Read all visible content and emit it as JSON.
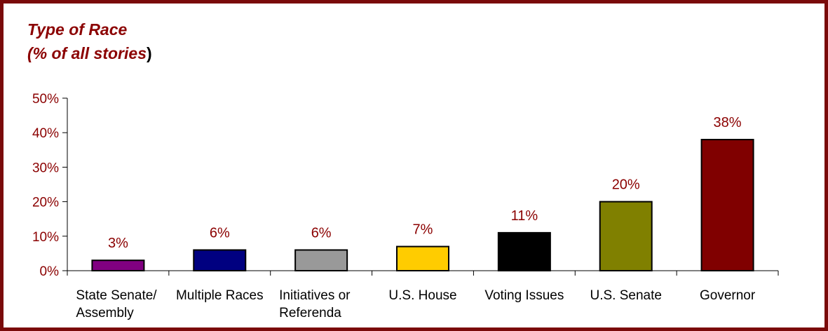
{
  "chart_data": {
    "type": "bar",
    "title_line1": "Type of Race",
    "title_line2": "(% of all stories",
    "title_line2_end": ")",
    "categories": [
      [
        "State Senate/",
        "Assembly"
      ],
      [
        "Multiple Races"
      ],
      [
        "Initiatives or",
        "Referenda"
      ],
      [
        "U.S. House"
      ],
      [
        "Voting Issues"
      ],
      [
        "U.S. Senate"
      ],
      [
        "Governor"
      ]
    ],
    "values": [
      3,
      6,
      6,
      7,
      11,
      20,
      38
    ],
    "data_labels": [
      "3%",
      "6%",
      "6%",
      "7%",
      "11%",
      "20%",
      "38%"
    ],
    "colors": [
      "#800080",
      "#000080",
      "#999999",
      "#ffcc00",
      "#000000",
      "#808000",
      "#800000"
    ],
    "ylim": [
      0,
      50
    ],
    "yticks": [
      0,
      10,
      20,
      30,
      40,
      50
    ],
    "ytick_labels": [
      "0%",
      "10%",
      "20%",
      "30%",
      "40%",
      "50%"
    ],
    "xlabel": "",
    "ylabel": "",
    "grid": false,
    "legend": "none",
    "label_color": "#8b0000",
    "border_color": "#7a0a0a"
  }
}
